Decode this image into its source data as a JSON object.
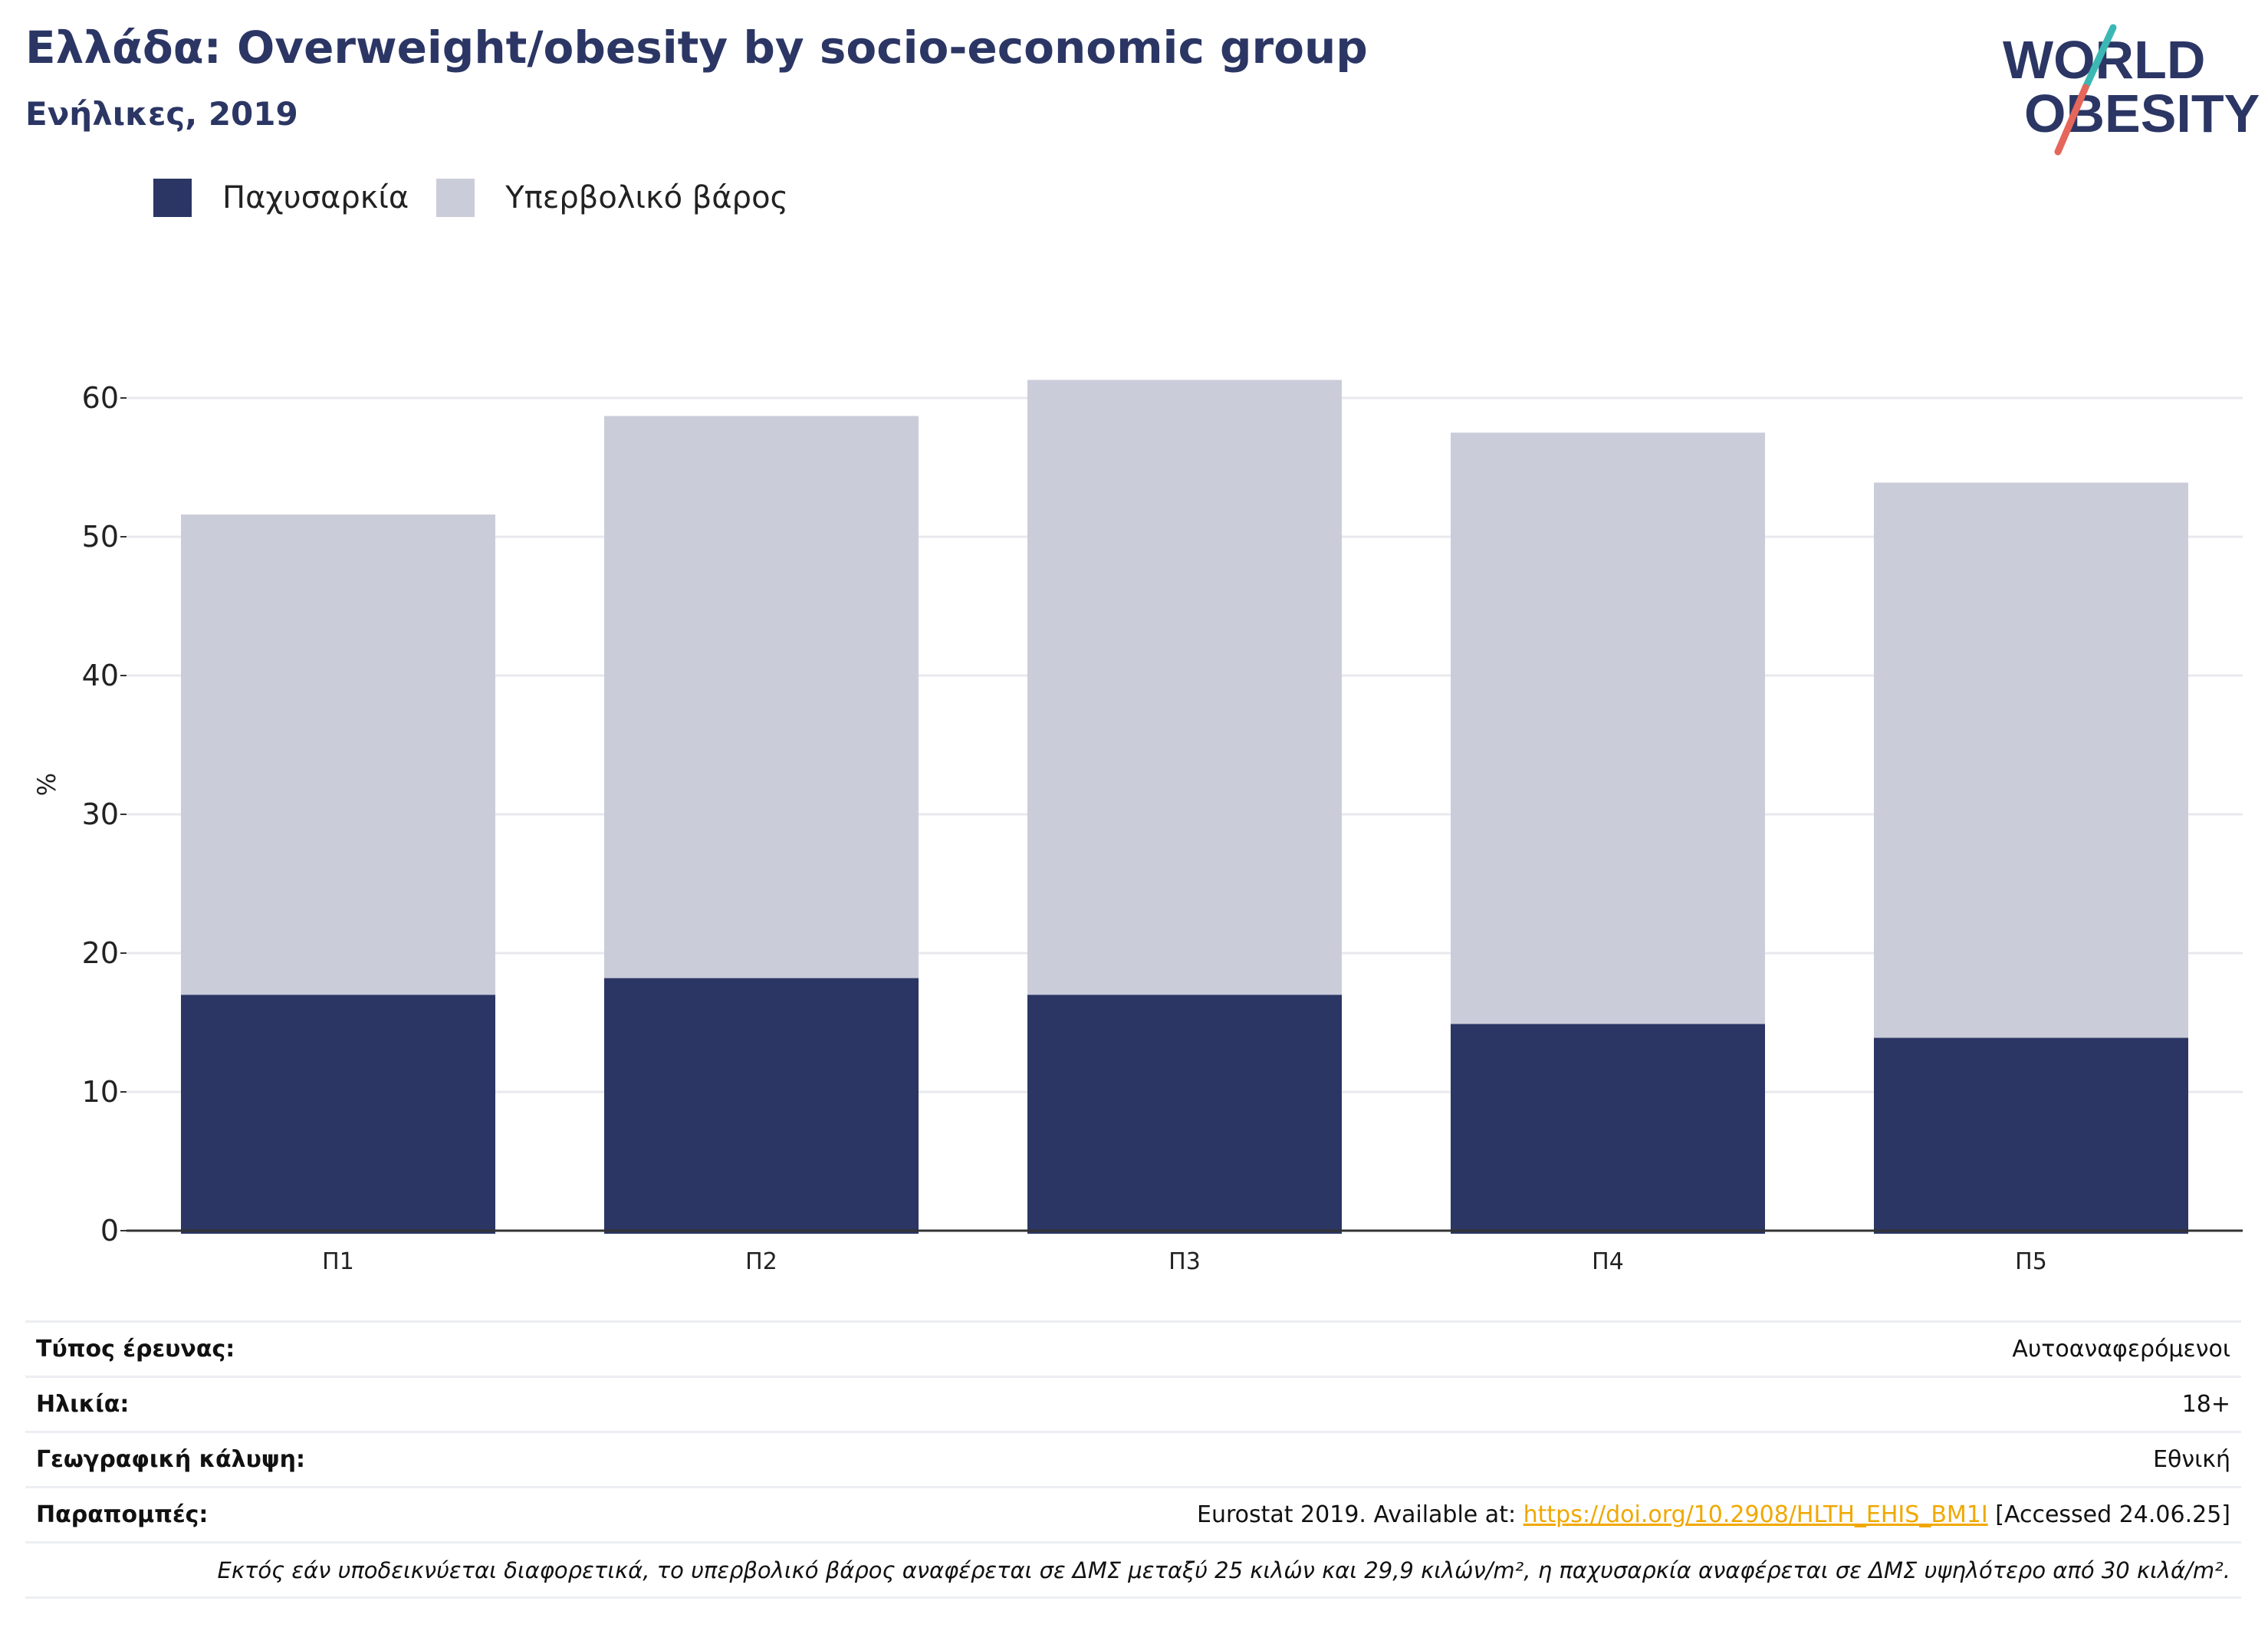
{
  "header": {
    "title": "Ελλάδα: Overweight/obesity by socio-economic group",
    "subtitle": "Ενήλικες, 2019"
  },
  "logo": {
    "line1": "WORLD",
    "line2": "OBESITY",
    "colors": {
      "text": "#2b3664",
      "slash_top": "#3bb8b3",
      "slash_bottom": "#e5665a"
    }
  },
  "colors": {
    "obesity": "#2b3664",
    "overweight": "#cacdd9",
    "grid": "#e8e9ee",
    "axis": "#333333"
  },
  "chart_data": {
    "type": "bar",
    "stacked": true,
    "categories": [
      "Π1",
      "Π2",
      "Π3",
      "Π4",
      "Π5"
    ],
    "series": [
      {
        "name": "Παχυσαρκία",
        "values": [
          17.0,
          18.2,
          17.0,
          14.9,
          13.9
        ]
      },
      {
        "name": "Υπερβολικό βάρος",
        "values": [
          34.6,
          40.5,
          44.3,
          42.6,
          40.0
        ]
      }
    ],
    "totals": [
      51.6,
      58.7,
      61.3,
      57.5,
      53.9
    ],
    "yticks": [
      "0",
      "10",
      "20",
      "30",
      "40",
      "50",
      "60"
    ],
    "ylabel": "%",
    "xlabel": "",
    "ylim": [
      0,
      62
    ],
    "grid": true,
    "legend_position": "top-left"
  },
  "info": {
    "rows": [
      {
        "key": "Τύπος έρευνας:",
        "value": "Αυτοαναφερόμενοι"
      },
      {
        "key": "Ηλικία:",
        "value": "18+"
      },
      {
        "key": "Γεωγραφική κάλυψη:",
        "value": "Εθνική"
      }
    ],
    "references": {
      "key": "Παραπομπές:",
      "prefix": "Eurostat 2019. Available at: ",
      "link": "https://doi.org/10.2908/HLTH_EHIS_BM1I",
      "suffix": " [Accessed 24.06.25]"
    },
    "note": "Εκτός εάν υποδεικνύεται διαφορετικά, το υπερβολικό βάρος αναφέρεται σε ΔΜΣ μεταξύ 25 κιλών και 29,9 κιλών/m², η παχυσαρκία αναφέρεται σε ΔΜΣ υψηλότερο από 30 κιλά/m²."
  }
}
